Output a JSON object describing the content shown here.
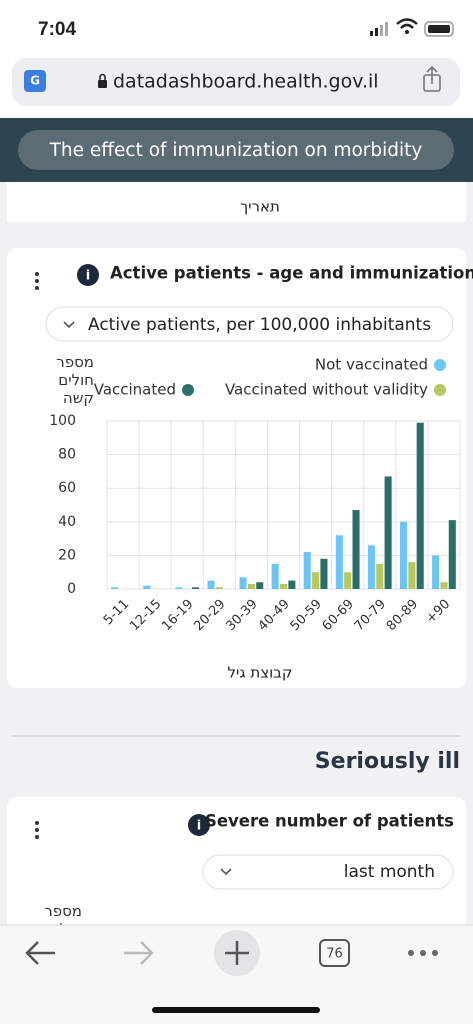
{
  "status_bar": {
    "time": "7:04"
  },
  "browser": {
    "url": "datadashboard.health.gov.il",
    "tab_count": 76
  },
  "banner": {
    "title": "The effect of immunization on morbidity"
  },
  "previous_chart": {
    "x_label": "תאריך"
  },
  "chart_data": {
    "type": "bar",
    "title": "Active patients - age and immunization",
    "subtitle": "Active patients, per 100,000 inhabitants",
    "ylabel": "מספר חולים קשה",
    "xlabel": "קבוצת גיל",
    "categories": [
      "5-11",
      "12-15",
      "16-19",
      "20-29",
      "30-39",
      "40-49",
      "50-59",
      "60-69",
      "70-79",
      "80-89",
      "+90"
    ],
    "series": [
      {
        "name": "Not vaccinated",
        "color": "#6cc6f5",
        "values": [
          1,
          2,
          1,
          5,
          7,
          15,
          22,
          32,
          26,
          40,
          20
        ]
      },
      {
        "name": "Vaccinated without validity",
        "color": "#b7c95c",
        "values": [
          0,
          0,
          0,
          1,
          3,
          3,
          10,
          10,
          15,
          16,
          4
        ]
      },
      {
        "name": "Vaccinated",
        "color": "#2b6f6b",
        "values": [
          0,
          0,
          1,
          0,
          4,
          5,
          18,
          47,
          67,
          99,
          41
        ]
      }
    ],
    "ylim": [
      0,
      100
    ],
    "yticks": [
      0,
      20,
      40,
      60,
      80,
      100
    ],
    "grid": true
  },
  "seriously_ill": {
    "section_title": "Seriously ill",
    "card_title": "Severe number of patients",
    "dropdown": "last month",
    "ylabel": "מספר חולים"
  }
}
